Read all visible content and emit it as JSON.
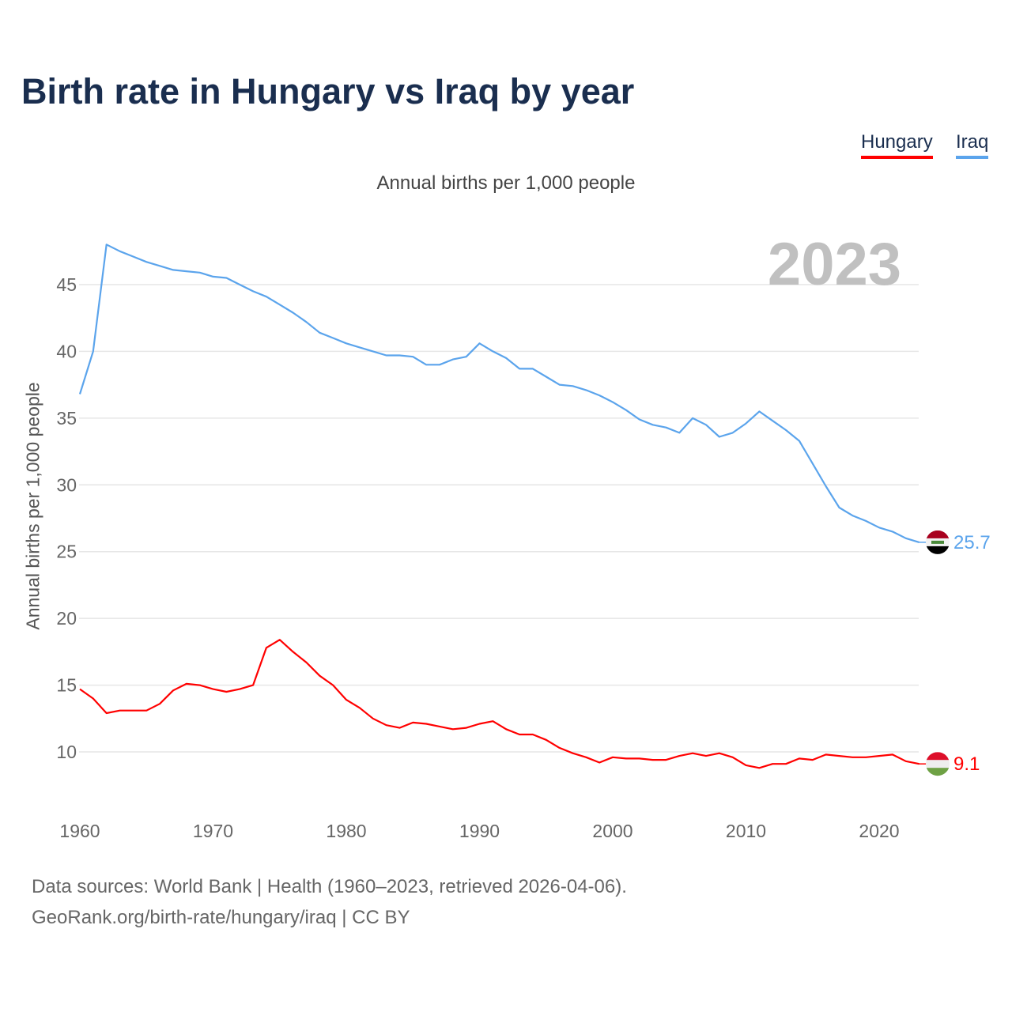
{
  "title": "Birth rate in Hungary vs Iraq by year",
  "subtitle": "Annual births per 1,000 people",
  "sources": {
    "line1": "Data sources: World Bank | Health (1960–2023, retrieved 2026-04-06).",
    "line2": "GeoRank.org/birth-rate/hungary/iraq | CC BY"
  },
  "chart_data": {
    "type": "line",
    "title": "Birth rate in Hungary vs Iraq by year",
    "subtitle": "Annual births per 1,000 people",
    "xlabel": "",
    "ylabel": "Annual births per 1,000 people",
    "year_label": "2023",
    "xlim": [
      1960,
      2023
    ],
    "ylim": [
      6.2,
      50
    ],
    "x_ticks": [
      1960,
      1970,
      1980,
      1990,
      2000,
      2010,
      2020
    ],
    "y_ticks": [
      10,
      15,
      20,
      25,
      30,
      35,
      40,
      45
    ],
    "grid": true,
    "legend_position": "top-right",
    "x_start": 1960,
    "series": [
      {
        "name": "Hungary",
        "color": "#ff0000",
        "end_label": "9.1",
        "flag": "hungary-flag",
        "values": [
          14.7,
          14.0,
          12.9,
          13.1,
          13.1,
          13.1,
          13.6,
          14.6,
          15.1,
          15.0,
          14.7,
          14.5,
          14.7,
          15.0,
          17.8,
          18.4,
          17.5,
          16.7,
          15.7,
          15.0,
          13.9,
          13.3,
          12.5,
          12.0,
          11.8,
          12.2,
          12.1,
          11.9,
          11.7,
          11.8,
          12.1,
          12.3,
          11.7,
          11.3,
          11.3,
          10.9,
          10.3,
          9.9,
          9.6,
          9.2,
          9.6,
          9.5,
          9.5,
          9.4,
          9.4,
          9.7,
          9.9,
          9.7,
          9.9,
          9.6,
          9.0,
          8.8,
          9.1,
          9.1,
          9.5,
          9.4,
          9.8,
          9.7,
          9.6,
          9.6,
          9.7,
          9.8,
          9.3,
          9.1
        ]
      },
      {
        "name": "Iraq",
        "color": "#5ba4ec",
        "end_label": "25.7",
        "flag": "iraq-flag",
        "values": [
          36.8,
          40.0,
          48.0,
          47.5,
          47.1,
          46.7,
          46.4,
          46.1,
          46.0,
          45.9,
          45.6,
          45.5,
          45.0,
          44.5,
          44.1,
          43.5,
          42.9,
          42.2,
          41.4,
          41.0,
          40.6,
          40.3,
          40.0,
          39.7,
          39.7,
          39.6,
          39.0,
          39.0,
          39.4,
          39.6,
          40.6,
          40.0,
          39.5,
          38.7,
          38.7,
          38.1,
          37.5,
          37.4,
          37.1,
          36.7,
          36.2,
          35.6,
          34.9,
          34.5,
          34.3,
          33.9,
          35.0,
          34.5,
          33.6,
          33.9,
          34.6,
          35.5,
          34.8,
          34.1,
          33.3,
          31.6,
          29.9,
          28.3,
          27.7,
          27.3,
          26.8,
          26.5,
          26.0,
          25.7
        ]
      }
    ]
  }
}
